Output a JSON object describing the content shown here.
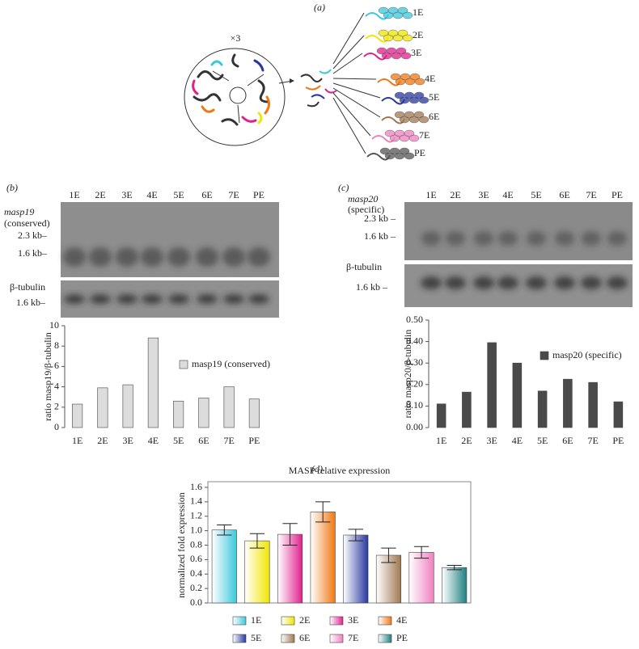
{
  "figure": {
    "panel_labels": [
      "(a)",
      "(b)",
      "(c)",
      "(d)"
    ],
    "diagram": {
      "multiplier": "×3",
      "labels": [
        "1E",
        "2E",
        "3E",
        "4E",
        "5E",
        "6E",
        "7E",
        "PE"
      ]
    },
    "blot_b": {
      "lanes": [
        "1E",
        "2E",
        "3E",
        "4E",
        "5E",
        "6E",
        "7E",
        "PE"
      ],
      "gene": "masp19",
      "gene_note": "(conserved)",
      "markers": [
        "2.3 kb–",
        "1.6 kb–"
      ],
      "control": "β-tubulin",
      "control_marker": "1.6 kb–"
    },
    "blot_c": {
      "lanes": [
        "1E",
        "2E",
        "3E",
        "4E",
        "5E",
        "6E",
        "7E",
        "PE"
      ],
      "gene": "masp20",
      "gene_note": "(specific)",
      "markers": [
        "2.3 kb –",
        "1.6 kb –"
      ],
      "control": "β-tubulin",
      "control_marker": "1.6 kb –"
    }
  },
  "chart_data": [
    {
      "type": "bar",
      "y_label": "ratio masp19/β-tubulin",
      "categories": [
        "1E",
        "2E",
        "3E",
        "4E",
        "5E",
        "6E",
        "7E",
        "PE"
      ],
      "series": [
        {
          "name": "masp19 (conserved)",
          "color": "#dcdcdc",
          "values": [
            2.3,
            3.9,
            4.2,
            8.8,
            2.6,
            2.9,
            4.0,
            2.8
          ]
        }
      ],
      "ylim": [
        0,
        10
      ],
      "yticks": [
        0,
        2,
        4,
        6,
        8,
        10
      ]
    },
    {
      "type": "bar",
      "y_label": "ratio masp20/β-tubulin",
      "categories": [
        "1E",
        "2E",
        "3E",
        "4E",
        "5E",
        "6E",
        "7E",
        "PE"
      ],
      "series": [
        {
          "name": "masp20 (specific)",
          "color": "#4a4a4a",
          "values": [
            0.11,
            0.165,
            0.395,
            0.3,
            0.17,
            0.225,
            0.21,
            0.12
          ]
        }
      ],
      "ylim": [
        0,
        0.5
      ],
      "yticks": [
        {
          "value": 0,
          "label": "0.00"
        },
        {
          "value": 0.1,
          "label": "0.10"
        },
        {
          "value": 0.2,
          "label": "0.20"
        },
        {
          "value": 0.3,
          "label": "0.30"
        },
        {
          "value": 0.4,
          "label": "0.40"
        },
        {
          "value": 0.5,
          "label": "0.50"
        }
      ]
    },
    {
      "type": "bar",
      "title": "MASP relative expression",
      "y_label": "normalized fold expression",
      "categories": [
        "1E",
        "2E",
        "3E",
        "4E",
        "5E",
        "6E",
        "7E",
        "PE"
      ],
      "values": [
        1.01,
        0.86,
        0.95,
        1.26,
        0.94,
        0.66,
        0.7,
        0.49
      ],
      "errors": [
        0.07,
        0.1,
        0.15,
        0.14,
        0.08,
        0.1,
        0.08,
        0.03
      ],
      "colors": [
        "#3cc8dc",
        "#f0e600",
        "#e0208c",
        "#f07814",
        "#2838a0",
        "#a07850",
        "#f080c0",
        "#208080"
      ],
      "ylim": [
        0,
        1.6
      ],
      "yticks": [
        {
          "value": 0,
          "label": "0.0"
        },
        {
          "value": 0.2,
          "label": "0.2"
        },
        {
          "value": 0.4,
          "label": "0.4"
        },
        {
          "value": 0.6,
          "label": "0.6"
        },
        {
          "value": 0.8,
          "label": "0.8"
        },
        {
          "value": 1.0,
          "label": "1.0"
        },
        {
          "value": 1.2,
          "label": "1.2"
        },
        {
          "value": 1.4,
          "label": "1.4"
        },
        {
          "value": 1.6,
          "label": "1.6"
        }
      ]
    }
  ]
}
